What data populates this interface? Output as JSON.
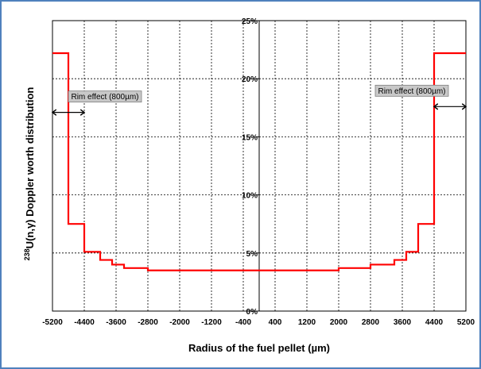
{
  "chart_data": {
    "type": "line",
    "title": "",
    "xlabel": "Radius of the fuel pellet (µm)",
    "ylabel_sup": "238",
    "ylabel_main": "U(n,γ) Doppler worth distribution",
    "xlim": [
      -5200,
      5200
    ],
    "ylim": [
      0,
      25
    ],
    "x_ticks": [
      "-5200",
      "-4400",
      "-3600",
      "-2800",
      "-2000",
      "-1200",
      "-400",
      "400",
      "1200",
      "2000",
      "2800",
      "3600",
      "4400",
      "5200"
    ],
    "y_ticks": [
      {
        "value": 0,
        "label": "0%"
      },
      {
        "value": 5,
        "label": "5%"
      },
      {
        "value": 10,
        "label": "10%"
      },
      {
        "value": 15,
        "label": "15%"
      },
      {
        "value": 20,
        "label": "20%"
      },
      {
        "value": 25,
        "label": "25%"
      }
    ],
    "grid": true,
    "series": [
      {
        "color": "#ff0000",
        "step": true,
        "x": [
          -5200,
          -4800,
          -4400,
          -4000,
          -3700,
          -3400,
          -2800,
          -2000,
          0,
          2000,
          2800,
          3400,
          3700,
          4000,
          4400,
          4800,
          5200
        ],
        "y": [
          22.2,
          7.5,
          5.1,
          4.4,
          4.0,
          3.7,
          3.5,
          3.5,
          3.5,
          3.7,
          4.0,
          4.4,
          5.1,
          7.5,
          22.2,
          22.2,
          22.2
        ]
      }
    ],
    "annotations": [
      {
        "text": "Rim effect (800µm)",
        "x_from": -5200,
        "x_to": -4400,
        "y": 17.1
      },
      {
        "text": "Rim effect (800µm)",
        "x_from": 4400,
        "x_to": 5200,
        "y": 17.6
      }
    ]
  }
}
